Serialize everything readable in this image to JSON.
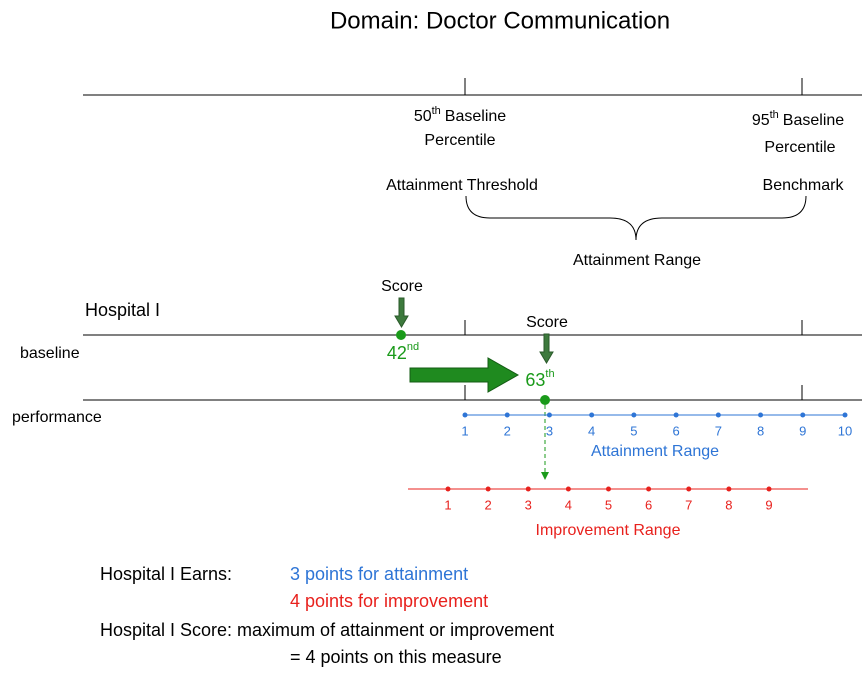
{
  "title": "Domain: Doctor Communication",
  "top": {
    "threshold": {
      "number": "50",
      "suffix": "th",
      "line1": "Baseline",
      "line2": "Percentile",
      "label": "Attainment Threshold"
    },
    "benchmark": {
      "number": "95",
      "suffix": "th",
      "line1": "Baseline",
      "line2": "Percentile",
      "label": "Benchmark"
    },
    "range_label": "Attainment Range"
  },
  "hospital": "Hospital I",
  "baseline": {
    "label": "baseline",
    "score_label": "Score",
    "number": "42",
    "suffix": "nd"
  },
  "performance": {
    "label": "performance",
    "score_label": "Score",
    "number": "63",
    "suffix": "th"
  },
  "attainment_scale": {
    "points": [
      1,
      2,
      3,
      4,
      5,
      6,
      7,
      8,
      9,
      10
    ],
    "label": "Attainment Range"
  },
  "improvement_scale": {
    "points": [
      1,
      2,
      3,
      4,
      5,
      6,
      7,
      8,
      9
    ],
    "label": "Improvement Range"
  },
  "summary": {
    "earns_label": "Hospital I Earns:",
    "attainment": "3 points for attainment",
    "improvement": "4 points for improvement",
    "score_label": "Hospital I Score: maximum of attainment or improvement",
    "result": "= 4 points on this measure"
  }
}
